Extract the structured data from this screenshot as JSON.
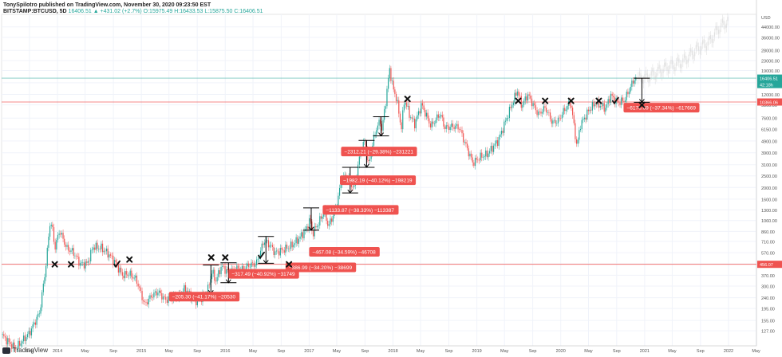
{
  "header": {
    "line1": "TonySpilotro published on TradingView.com, November 30, 2020 09:23:50 EST",
    "symbol": "BITSTAMP:BTCUSD, 5D",
    "change": "16406.51 ▲ +431.02 (+2.7%)",
    "ohlc": "O:15975.49 H:16433.53 L:15875.50 C:16406.51"
  },
  "footer": {
    "brand": "TradingView"
  },
  "chart_data": {
    "type": "candlestick",
    "symbol": "BITSTAMP:BTCUSD",
    "interval": "5D",
    "scale": "log",
    "currency": "USD",
    "y_ticks": [
      "44000.00",
      "36000.00",
      "28000.00",
      "23000.00",
      "19000.00",
      "15000.00",
      "12000.00",
      "9800.00",
      "7600.00",
      "6150.00",
      "4900.00",
      "3900.00",
      "3100.00",
      "2500.00",
      "2000.00",
      "1600.00",
      "1300.00",
      "1060.00",
      "860.00",
      "710.00",
      "570.00",
      "460.00",
      "370.00",
      "300.00",
      "240.00",
      "195.00",
      "155.00",
      "127.00"
    ],
    "x_ticks": [
      "May",
      "Sep",
      "2014",
      "May",
      "Sep",
      "2015",
      "May",
      "Sep",
      "2016",
      "May",
      "Sep",
      "2017",
      "May",
      "Sep",
      "2018",
      "May",
      "Sep",
      "2019",
      "May",
      "Sep",
      "2020",
      "May",
      "Sep",
      "2021",
      "May",
      "Sep",
      "2022",
      "May"
    ],
    "price_labels": [
      {
        "value": "16406.51",
        "color": "#26a69a"
      },
      {
        "value": "42:18h",
        "color": "#26a69a"
      },
      {
        "value": "10366.06",
        "color": "#ef5350"
      },
      {
        "value": "456.07",
        "color": "#ef5350"
      }
    ],
    "horizontal_levels": [
      {
        "price": 10366.06,
        "color": "#ef5350"
      },
      {
        "price": 456.07,
        "color": "#ef5350"
      },
      {
        "price": 16406.51,
        "color": "#26a69a"
      }
    ],
    "series": [
      {
        "name": "",
        "points": [
          [
            "2013-05-01",
            118
          ],
          [
            "2013-07-01",
            90
          ],
          [
            "2013-09-01",
            122
          ],
          [
            "2013-10-15",
            180
          ],
          [
            "2013-11-10",
            420
          ],
          [
            "2013-11-30",
            1050
          ],
          [
            "2013-12-10",
            900
          ],
          [
            "2013-12-20",
            620
          ],
          [
            "2014-01-10",
            880
          ],
          [
            "2014-02-10",
            620
          ],
          [
            "2014-03-10",
            580
          ],
          [
            "2014-04-10",
            460
          ],
          [
            "2014-05-10",
            460
          ],
          [
            "2014-06-05",
            640
          ],
          [
            "2014-07-10",
            625
          ],
          [
            "2014-08-10",
            560
          ],
          [
            "2014-09-10",
            470
          ],
          [
            "2014-10-10",
            370
          ],
          [
            "2014-11-10",
            380
          ],
          [
            "2014-12-10",
            340
          ],
          [
            "2015-01-15",
            210
          ],
          [
            "2015-02-15",
            250
          ],
          [
            "2015-03-15",
            270
          ],
          [
            "2015-04-15",
            230
          ],
          [
            "2015-05-15",
            240
          ],
          [
            "2015-06-15",
            245
          ],
          [
            "2015-07-10",
            290
          ],
          [
            "2015-08-20",
            225
          ],
          [
            "2015-09-15",
            235
          ],
          [
            "2015-10-15",
            270
          ],
          [
            "2015-11-05",
            400
          ],
          [
            "2015-11-20",
            330
          ],
          [
            "2015-12-15",
            440
          ],
          [
            "2016-01-15",
            390
          ],
          [
            "2016-02-15",
            420
          ],
          [
            "2016-03-15",
            415
          ],
          [
            "2016-04-15",
            450
          ],
          [
            "2016-05-15",
            460
          ],
          [
            "2016-06-18",
            720
          ],
          [
            "2016-07-15",
            660
          ],
          [
            "2016-08-05",
            570
          ],
          [
            "2016-09-15",
            610
          ],
          [
            "2016-10-15",
            650
          ],
          [
            "2016-11-15",
            740
          ],
          [
            "2016-12-20",
            900
          ],
          [
            "2017-01-05",
            1100
          ],
          [
            "2017-01-15",
            820
          ],
          [
            "2017-02-15",
            1050
          ],
          [
            "2017-03-10",
            1280
          ],
          [
            "2017-03-25",
            940
          ],
          [
            "2017-04-25",
            1300
          ],
          [
            "2017-05-25",
            2400
          ],
          [
            "2017-06-15",
            2500
          ],
          [
            "2017-07-15",
            1950
          ],
          [
            "2017-08-15",
            4200
          ],
          [
            "2017-09-02",
            4900
          ],
          [
            "2017-09-15",
            3000
          ],
          [
            "2017-10-15",
            5800
          ],
          [
            "2017-11-08",
            7400
          ],
          [
            "2017-11-12",
            5800
          ],
          [
            "2017-12-01",
            10800
          ],
          [
            "2017-12-17",
            19700
          ],
          [
            "2018-01-01",
            13500
          ],
          [
            "2018-01-17",
            11000
          ],
          [
            "2018-02-06",
            6200
          ],
          [
            "2018-02-20",
            11000
          ],
          [
            "2018-03-15",
            8000
          ],
          [
            "2018-04-05",
            6800
          ],
          [
            "2018-05-05",
            9900
          ],
          [
            "2018-06-15",
            6500
          ],
          [
            "2018-07-25",
            8300
          ],
          [
            "2018-08-15",
            6300
          ],
          [
            "2018-09-15",
            6500
          ],
          [
            "2018-10-15",
            6400
          ],
          [
            "2018-11-20",
            4200
          ],
          [
            "2018-12-15",
            3200
          ],
          [
            "2019-01-15",
            3600
          ],
          [
            "2019-02-15",
            3800
          ],
          [
            "2019-04-05",
            5000
          ],
          [
            "2019-05-15",
            8000
          ],
          [
            "2019-06-26",
            13000
          ],
          [
            "2019-07-15",
            9600
          ],
          [
            "2019-08-10",
            12000
          ],
          [
            "2019-09-25",
            8200
          ],
          [
            "2019-10-26",
            9300
          ],
          [
            "2019-11-25",
            7000
          ],
          [
            "2019-12-20",
            7200
          ],
          [
            "2020-01-15",
            8800
          ],
          [
            "2020-02-13",
            10400
          ],
          [
            "2020-03-12",
            4300
          ],
          [
            "2020-03-25",
            6600
          ],
          [
            "2020-05-05",
            9000
          ],
          [
            "2020-06-01",
            10200
          ],
          [
            "2020-07-15",
            9200
          ],
          [
            "2020-08-05",
            11800
          ],
          [
            "2020-09-05",
            10300
          ],
          [
            "2020-10-05",
            10700
          ],
          [
            "2020-10-25",
            13000
          ],
          [
            "2020-11-15",
            16000
          ],
          [
            "2020-11-28",
            16406
          ]
        ]
      }
    ],
    "projection": {
      "name": "",
      "color": "#c9c9c9",
      "points": [
        [
          "2020-11-28",
          16406
        ],
        [
          "2021-01-15",
          16800
        ],
        [
          "2021-04-01",
          20000
        ],
        [
          "2021-06-15",
          22500
        ],
        [
          "2021-08-20",
          29000
        ],
        [
          "2021-10-10",
          33000
        ],
        [
          "2021-11-20",
          43000
        ],
        [
          "2022-01-01",
          50000
        ]
      ]
    },
    "corrections": [
      {
        "label": "−205.30 (−41.17%) −20530",
        "from": [
          "2015-10-25",
          450
        ],
        "to": [
          "2015-11-05",
          260
        ],
        "box_at": [
          "2015-05-01",
          245
        ]
      },
      {
        "label": "−317.49 (−40.92%) −31749",
        "from": [
          "2016-01-10",
          470
        ],
        "to": [
          "2016-01-20",
          320
        ],
        "box_at": [
          "2016-01-15",
          380
        ]
      },
      {
        "label": "−386.99 (−34.20%) −38699",
        "from": [
          "2016-06-18",
          780
        ],
        "to": [
          "2016-07-05",
          465
        ],
        "box_at": [
          "2016-09-20",
          430
        ]
      },
      {
        "label": "−467.08 (−34.59%) −46708",
        "from": [
          "2017-01-05",
          1350
        ],
        "to": [
          "2017-01-15",
          880
        ],
        "box_at": [
          "2017-01-01",
          580
        ]
      },
      {
        "label": "−1133.87 (−38.33%) −113387",
        "from": [
          "2017-06-12",
          2950
        ],
        "to": [
          "2017-07-15",
          1800
        ],
        "box_at": [
          "2017-03-01",
          1300
        ]
      },
      {
        "label": "−1982.19 (−40.12%) −198219",
        "from": [
          "2017-09-01",
          4950
        ],
        "to": [
          "2017-09-15",
          2950
        ],
        "box_at": [
          "2017-05-15",
          2300
        ]
      },
      {
        "label": "−2312.21 (−29.38%) −231221",
        "from": [
          "2017-11-08",
          7800
        ],
        "to": [
          "2017-11-12",
          5400
        ],
        "box_at": [
          "2017-05-20",
          4000
        ]
      },
      {
        "label": "−6176.69 (−37.34%) −617669",
        "from": [
          "2020-12-20",
          16400
        ],
        "to": [
          "2020-12-20",
          10300
        ],
        "box_at": [
          "2020-10-01",
          9300
        ]
      }
    ],
    "markers": [
      {
        "symbol": "x",
        "date": "2013-12-20",
        "price": 456
      },
      {
        "symbol": "x",
        "date": "2014-03-01",
        "price": 456
      },
      {
        "symbol": "check",
        "date": "2014-09-15",
        "price": 456
      },
      {
        "symbol": "x",
        "date": "2014-11-10",
        "price": 500
      },
      {
        "symbol": "x",
        "date": "2015-11-01",
        "price": 520
      },
      {
        "symbol": "x",
        "date": "2016-01-01",
        "price": 520
      },
      {
        "symbol": "check",
        "date": "2016-06-05",
        "price": 540
      },
      {
        "symbol": "x",
        "date": "2016-10-05",
        "price": 456
      },
      {
        "symbol": "x",
        "date": "2018-03-05",
        "price": 11000
      },
      {
        "symbol": "x",
        "date": "2019-06-30",
        "price": 10600
      },
      {
        "symbol": "x",
        "date": "2019-10-25",
        "price": 10600
      },
      {
        "symbol": "x",
        "date": "2020-02-15",
        "price": 10600
      },
      {
        "symbol": "x",
        "date": "2020-06-15",
        "price": 10600
      },
      {
        "symbol": "check",
        "date": "2020-08-25",
        "price": 10600
      },
      {
        "symbol": "x",
        "date": "2020-12-20",
        "price": 9800
      }
    ],
    "grid": true
  }
}
